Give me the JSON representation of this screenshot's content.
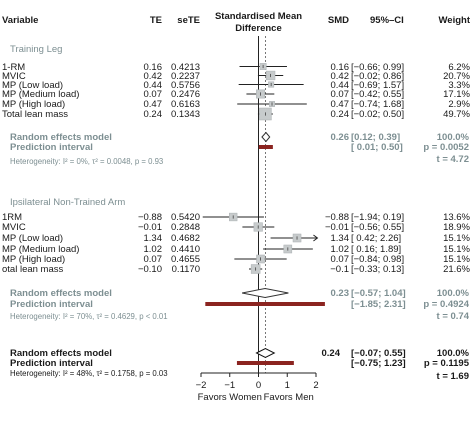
{
  "chart_data": {
    "type": "forest",
    "columns": {
      "variable": "Variable",
      "te": "TE",
      "sete": "seTE",
      "plot_title_line1": "Standardised Mean",
      "plot_title_line2": "Difference",
      "smd": "SMD",
      "ci": "95%–CI",
      "weight": "Weight"
    },
    "xaxis": {
      "ticks": [
        -2,
        -1,
        0,
        1,
        2
      ],
      "tick_labels": [
        "−2",
        "−1",
        "0",
        "1",
        "2"
      ],
      "xlim": [
        -2,
        2
      ],
      "left_label": "Favors Women",
      "right_label": "Favors Men",
      "reference_line": 0,
      "dashed_line": 0.24
    },
    "groups": [
      {
        "name": "Training Leg",
        "studies": [
          {
            "label": "1-RM",
            "te": "0.16",
            "sete": "0.4213",
            "smd": "0.16",
            "ci": "[−0.66; 0.99]",
            "weight": "6.2%",
            "est": 0.16,
            "lo": -0.66,
            "hi": 0.99,
            "w": 6.2
          },
          {
            "label": "MVIC",
            "te": "0.42",
            "sete": "0.2237",
            "smd": "0.42",
            "ci": "[−0.02; 0.86]",
            "weight": "20.7%",
            "est": 0.42,
            "lo": -0.02,
            "hi": 0.86,
            "w": 20.7
          },
          {
            "label": "MP (Low load)",
            "te": "0.44",
            "sete": "0.5756",
            "smd": "0.44",
            "ci": "[−0.69; 1.57]",
            "weight": "3.3%",
            "est": 0.44,
            "lo": -0.69,
            "hi": 1.57,
            "w": 3.3
          },
          {
            "label": "MP (Medium load)",
            "te": "0.07",
            "sete": "0.2476",
            "smd": "0.07",
            "ci": "[−0.42; 0.55]",
            "weight": "17.1%",
            "est": 0.07,
            "lo": -0.42,
            "hi": 0.55,
            "w": 17.1
          },
          {
            "label": "MP (High load)",
            "te": "0.47",
            "sete": "0.6163",
            "smd": "0.47",
            "ci": "[−0.74; 1.68]",
            "weight": "2.9%",
            "est": 0.47,
            "lo": -0.74,
            "hi": 1.68,
            "w": 2.9
          },
          {
            "label": "Total lean mass",
            "te": "0.24",
            "sete": "0.1343",
            "smd": "0.24",
            "ci": "[−0.02; 0.50]",
            "weight": "49.7%",
            "est": 0.24,
            "lo": -0.02,
            "hi": 0.5,
            "w": 49.7
          }
        ],
        "model_label": "Random effects model",
        "pi_label": "Prediction interval",
        "model": {
          "smd": "0.26",
          "ci": "[0.12; 0.39]",
          "weight": "100.0%",
          "est": 0.26,
          "lo": 0.12,
          "hi": 0.39
        },
        "pi": {
          "ci": "[ 0.01; 0.50]",
          "lo": 0.01,
          "hi": 0.5
        },
        "p_text": "p = 0.0052",
        "t_text": "t = 4.72",
        "heterogeneity": "Heterogeneity: I² = 0%, τ² = 0.0048, p = 0.93"
      },
      {
        "name": "Ipsilateral Non-Trained Arm",
        "studies": [
          {
            "label": "1RM",
            "te": "−0.88",
            "sete": "0.5420",
            "smd": "−0.88",
            "ci": "[−1.94; 0.19]",
            "weight": "13.6%",
            "est": -0.88,
            "lo": -1.94,
            "hi": 0.19,
            "w": 13.6
          },
          {
            "label": "MVIC",
            "te": "−0.01",
            "sete": "0.2848",
            "smd": "−0.01",
            "ci": "[−0.56; 0.55]",
            "weight": "18.9%",
            "est": -0.01,
            "lo": -0.56,
            "hi": 0.55,
            "w": 18.9
          },
          {
            "label": "MP (Low load)",
            "te": "1.34",
            "sete": "0.4682",
            "smd": "1.34",
            "ci": "[ 0.42; 2.26]",
            "weight": "15.1%",
            "est": 1.34,
            "lo": 0.42,
            "hi": 2.26,
            "w": 15.1
          },
          {
            "label": "MP (Medium load)",
            "te": "1.02",
            "sete": "0.4410",
            "smd": "1.02",
            "ci": "[ 0.16; 1.89]",
            "weight": "15.1%",
            "est": 1.02,
            "lo": 0.16,
            "hi": 1.89,
            "w": 15.1
          },
          {
            "label": "MP (High load)",
            "te": "0.07",
            "sete": "0.4655",
            "smd": "0.07",
            "ci": "[−0.84; 0.98]",
            "weight": "15.1%",
            "est": 0.07,
            "lo": -0.84,
            "hi": 0.98,
            "w": 15.1
          },
          {
            "label": "otal lean mass",
            "te": "−0.10",
            "sete": "0.1170",
            "smd": "−0.1",
            "ci": "[−0.33; 0.13]",
            "weight": "21.6%",
            "est": -0.1,
            "lo": -0.33,
            "hi": 0.13,
            "w": 21.6
          }
        ],
        "model_label": "Random effects model",
        "pi_label": "Prediction interval",
        "model": {
          "smd": "0.23",
          "ci": "[−0.57; 1.04]",
          "weight": "100.0%",
          "est": 0.23,
          "lo": -0.57,
          "hi": 1.04
        },
        "pi": {
          "ci": "[−1.85; 2.31]",
          "lo": -1.85,
          "hi": 2.31
        },
        "p_text": "p = 0.4924",
        "t_text": "t = 0.74",
        "heterogeneity": "Heterogeneity: I² = 70%, τ² = 0.4629, p < 0.01"
      }
    ],
    "overall": {
      "model_label": "Random effects model",
      "pi_label": "Prediction interval",
      "smd": "0.24",
      "ci": "[−0.07; 0.55]",
      "weight": "100.0%",
      "est": 0.24,
      "lo": -0.07,
      "hi": 0.55,
      "pi": {
        "ci": "[−0.75; 1.23]",
        "lo": -0.75,
        "hi": 1.23
      },
      "p_text": "p = 0.1195",
      "t_text": "t = 1.69",
      "heterogeneity": "Heterogeneity: I² = 48%, τ² = 0.1758, p = 0.03"
    },
    "colors": {
      "text": "#1a1a1a",
      "subgroup_text": "#7d8f92",
      "square": "#c7cbcc",
      "prediction_bar": "#8b2420",
      "axis": "#222222"
    }
  }
}
